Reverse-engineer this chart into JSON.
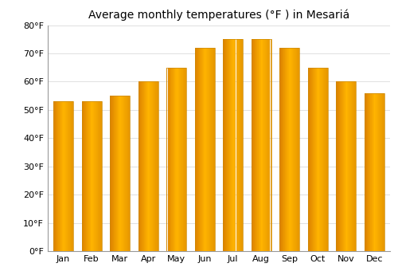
{
  "title": "Average monthly temperatures (°F ) in Mesariá",
  "months": [
    "Jan",
    "Feb",
    "Mar",
    "Apr",
    "May",
    "Jun",
    "Jul",
    "Aug",
    "Sep",
    "Oct",
    "Nov",
    "Dec"
  ],
  "values": [
    53,
    53,
    55,
    60,
    65,
    72,
    75,
    75,
    72,
    65,
    60,
    56
  ],
  "bar_color": "#FFA500",
  "bar_edge_color": "#CC8800",
  "ylim": [
    0,
    80
  ],
  "yticks": [
    0,
    10,
    20,
    30,
    40,
    50,
    60,
    70,
    80
  ],
  "ytick_labels": [
    "0°F",
    "10°F",
    "20°F",
    "30°F",
    "40°F",
    "50°F",
    "60°F",
    "70°F",
    "80°F"
  ],
  "background_color": "#ffffff",
  "grid_color": "#e0e0e0",
  "title_fontsize": 10,
  "tick_fontsize": 8,
  "bar_width": 0.7
}
